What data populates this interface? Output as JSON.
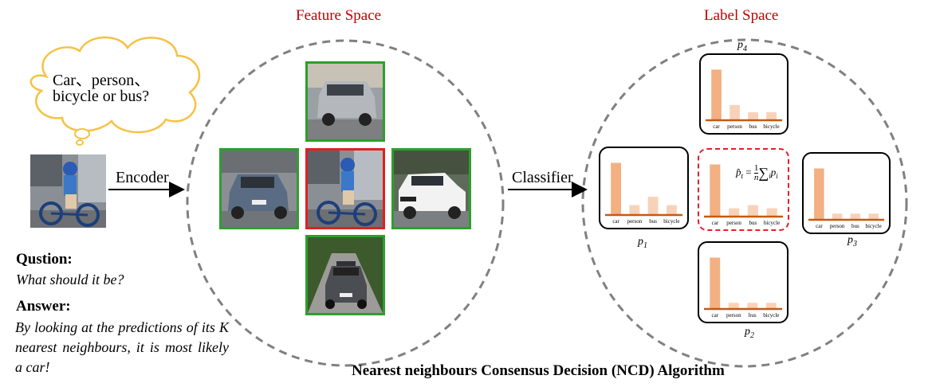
{
  "titles": {
    "feature_space": "Feature Space",
    "label_space": "Label Space",
    "algorithm": "Nearest neighbours Consensus Decision (NCD) Algorithm"
  },
  "thought_bubble": {
    "line1": "Car、person、",
    "line2": "bicycle or bus?"
  },
  "arrows": {
    "encoder": "Encoder",
    "classifier": "Classifier"
  },
  "qa": {
    "question_heading": "Qustion:",
    "question_text": "What should it be?",
    "answer_heading": "Answer:",
    "answer_text": "By looking at the predictions of its K nearest neighbours, it is most likely a car!"
  },
  "formula": {
    "lhs": "p̂",
    "lhs_sub": "t",
    "eq": " = ",
    "num": "1",
    "den": "n",
    "sum": "∑",
    "sum_sub": "i",
    "rhs": "p",
    "rhs_sub": "i"
  },
  "colors": {
    "title_red": "#c00000",
    "bar_dark": "#f2b083",
    "bar_light": "#f8d2b8",
    "baseline": "#c55a11",
    "neighbour_frame": "#2e9e2e",
    "query_frame": "#e02020",
    "bubble_stroke": "#f5c242"
  },
  "chart_data": [
    {
      "type": "bar",
      "id": "p4",
      "label_main": "p",
      "label_sub": "4",
      "categories": [
        "car",
        "person",
        "bus",
        "bicycle"
      ],
      "values": [
        1.0,
        0.3,
        0.16,
        0.16
      ],
      "ylim": [
        0,
        1.1
      ]
    },
    {
      "type": "bar",
      "id": "p1",
      "label_main": "p",
      "label_sub": "1",
      "categories": [
        "car",
        "person",
        "bus",
        "bicycle"
      ],
      "values": [
        1.0,
        0.19,
        0.35,
        0.19
      ],
      "ylim": [
        0,
        1.1
      ]
    },
    {
      "type": "bar",
      "id": "pt",
      "label_main": "",
      "label_sub": "",
      "categories": [
        "car",
        "person",
        "bus",
        "bicycle"
      ],
      "values": [
        1.0,
        0.16,
        0.22,
        0.16
      ],
      "ylim": [
        0,
        1.1
      ]
    },
    {
      "type": "bar",
      "id": "p3",
      "label_main": "p",
      "label_sub": "3",
      "categories": [
        "car",
        "person",
        "bus",
        "bicycle"
      ],
      "values": [
        1.0,
        0.12,
        0.12,
        0.12
      ],
      "ylim": [
        0,
        1.1
      ]
    },
    {
      "type": "bar",
      "id": "p2",
      "label_main": "p",
      "label_sub": "2",
      "categories": [
        "car",
        "person",
        "bus",
        "bicycle"
      ],
      "values": [
        1.0,
        0.12,
        0.12,
        0.12
      ],
      "ylim": [
        0,
        1.1
      ]
    }
  ]
}
